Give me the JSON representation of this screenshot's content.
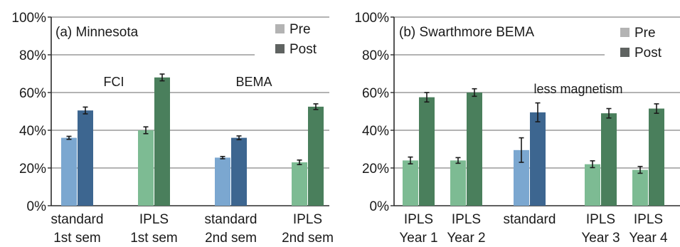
{
  "chart_data": [
    {
      "type": "bar",
      "title": "(a) Minnesota",
      "ylim": [
        0,
        100
      ],
      "yticks": [
        "0%",
        "20%",
        "40%",
        "60%",
        "80%",
        "100%"
      ],
      "grid": true,
      "legend": {
        "placement": "top-right",
        "entries": [
          {
            "name": "Pre",
            "color": "#b3b3b3"
          },
          {
            "name": "Post",
            "color": "#5f6361"
          }
        ]
      },
      "categories": [
        {
          "line1": "standard",
          "line2": "1st sem"
        },
        {
          "line1": "IPLS",
          "line2": "1st sem"
        },
        {
          "line1": "standard",
          "line2": "2nd sem"
        },
        {
          "line1": "IPLS",
          "line2": "2nd sem"
        }
      ],
      "series": [
        {
          "name": "Pre",
          "values": [
            36,
            40,
            25.5,
            23
          ],
          "errors": [
            0.8,
            1.8,
            0.6,
            1.2
          ],
          "colors": [
            "#7ba7d0",
            "#7dbb93",
            "#7ba7d0",
            "#7dbb93"
          ]
        },
        {
          "name": "Post",
          "values": [
            50.5,
            68,
            36,
            52.5
          ],
          "errors": [
            1.8,
            1.8,
            1.0,
            1.5
          ],
          "colors": [
            "#3d6690",
            "#4a7f5c",
            "#3d6690",
            "#4a7f5c"
          ]
        }
      ],
      "annotations": [
        {
          "text": "FCI",
          "x": 1.6,
          "y": 64.5
        },
        {
          "text": "BEMA",
          "x": 3.05,
          "y": 64.5
        }
      ],
      "annotation_line": {
        "y": 80,
        "x_start": 0,
        "x_end": 3.45
      }
    },
    {
      "type": "bar",
      "title": "(b) Swarthmore BEMA",
      "ylim": [
        0,
        100
      ],
      "yticks": [
        "0%",
        "20%",
        "40%",
        "60%",
        "80%",
        "100%"
      ],
      "grid": true,
      "legend": {
        "placement": "top-right",
        "entries": [
          {
            "name": "Pre",
            "color": "#b3b3b3"
          },
          {
            "name": "Post",
            "color": "#5f6361"
          }
        ]
      },
      "categories": [
        {
          "line1": "IPLS",
          "line2": "Year 1"
        },
        {
          "line1": "IPLS",
          "line2": "Year 2"
        },
        {
          "line1": "standard",
          "line2": ""
        },
        {
          "line1": "IPLS",
          "line2": "Year 3"
        },
        {
          "line1": "IPLS",
          "line2": "Year 4"
        }
      ],
      "series": [
        {
          "name": "Pre",
          "values": [
            24,
            24,
            29.5,
            22,
            19
          ],
          "errors": [
            1.8,
            1.5,
            6.5,
            1.8,
            1.8
          ],
          "colors": [
            "#7dbb93",
            "#7dbb93",
            "#7ba7d0",
            "#7dbb93",
            "#7dbb93"
          ]
        },
        {
          "name": "Post",
          "values": [
            57.5,
            60,
            49.5,
            49,
            51.5
          ],
          "errors": [
            2.5,
            2.0,
            5.0,
            2.5,
            2.5
          ],
          "colors": [
            "#4a7f5c",
            "#4a7f5c",
            "#3d6690",
            "#4a7f5c",
            "#4a7f5c"
          ]
        }
      ],
      "annotations": [
        {
          "text": "less magnetism",
          "x": 4.45,
          "y": 61
        }
      ],
      "annotation_line": {
        "y": 80,
        "x_start": 0,
        "x_end": 4.1
      }
    }
  ]
}
